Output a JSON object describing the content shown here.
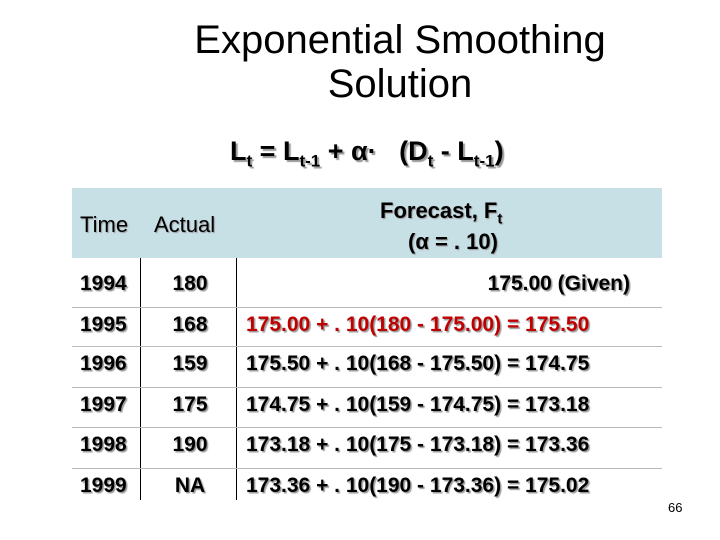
{
  "header": {
    "title_lines": [
      "Exponential Smoothing",
      "Solution"
    ],
    "formula": [
      "L",
      "t",
      " = L",
      "t-1",
      " + α·",
      "(D",
      "t",
      " - L",
      "t-1",
      ")"
    ]
  },
  "table": {
    "columns": [
      "Time",
      "Actual"
    ],
    "forecast_header": {
      "label": "Forecast, F",
      "subscript": "t",
      "alpha": "(α = . 10)"
    },
    "rows": [
      [
        "1994",
        "180",
        "175.00 (Given)"
      ],
      [
        "1995",
        "168",
        "175.00 + . 10(180 - 175.00) = 175.50"
      ],
      [
        "1996",
        "159",
        "175.50 + . 10(168 - 175.50) = 174.75"
      ],
      [
        "1997",
        "175",
        "174.75 + . 10(159 - 174.75) = 173.18"
      ],
      [
        "1998",
        "190",
        "173.18 + . 10(175 - 173.18) = 173.36"
      ],
      [
        "1999",
        "NA",
        "173.36 + . 10(190 - 173.36) = 175.02"
      ]
    ]
  },
  "page_number": "66"
}
